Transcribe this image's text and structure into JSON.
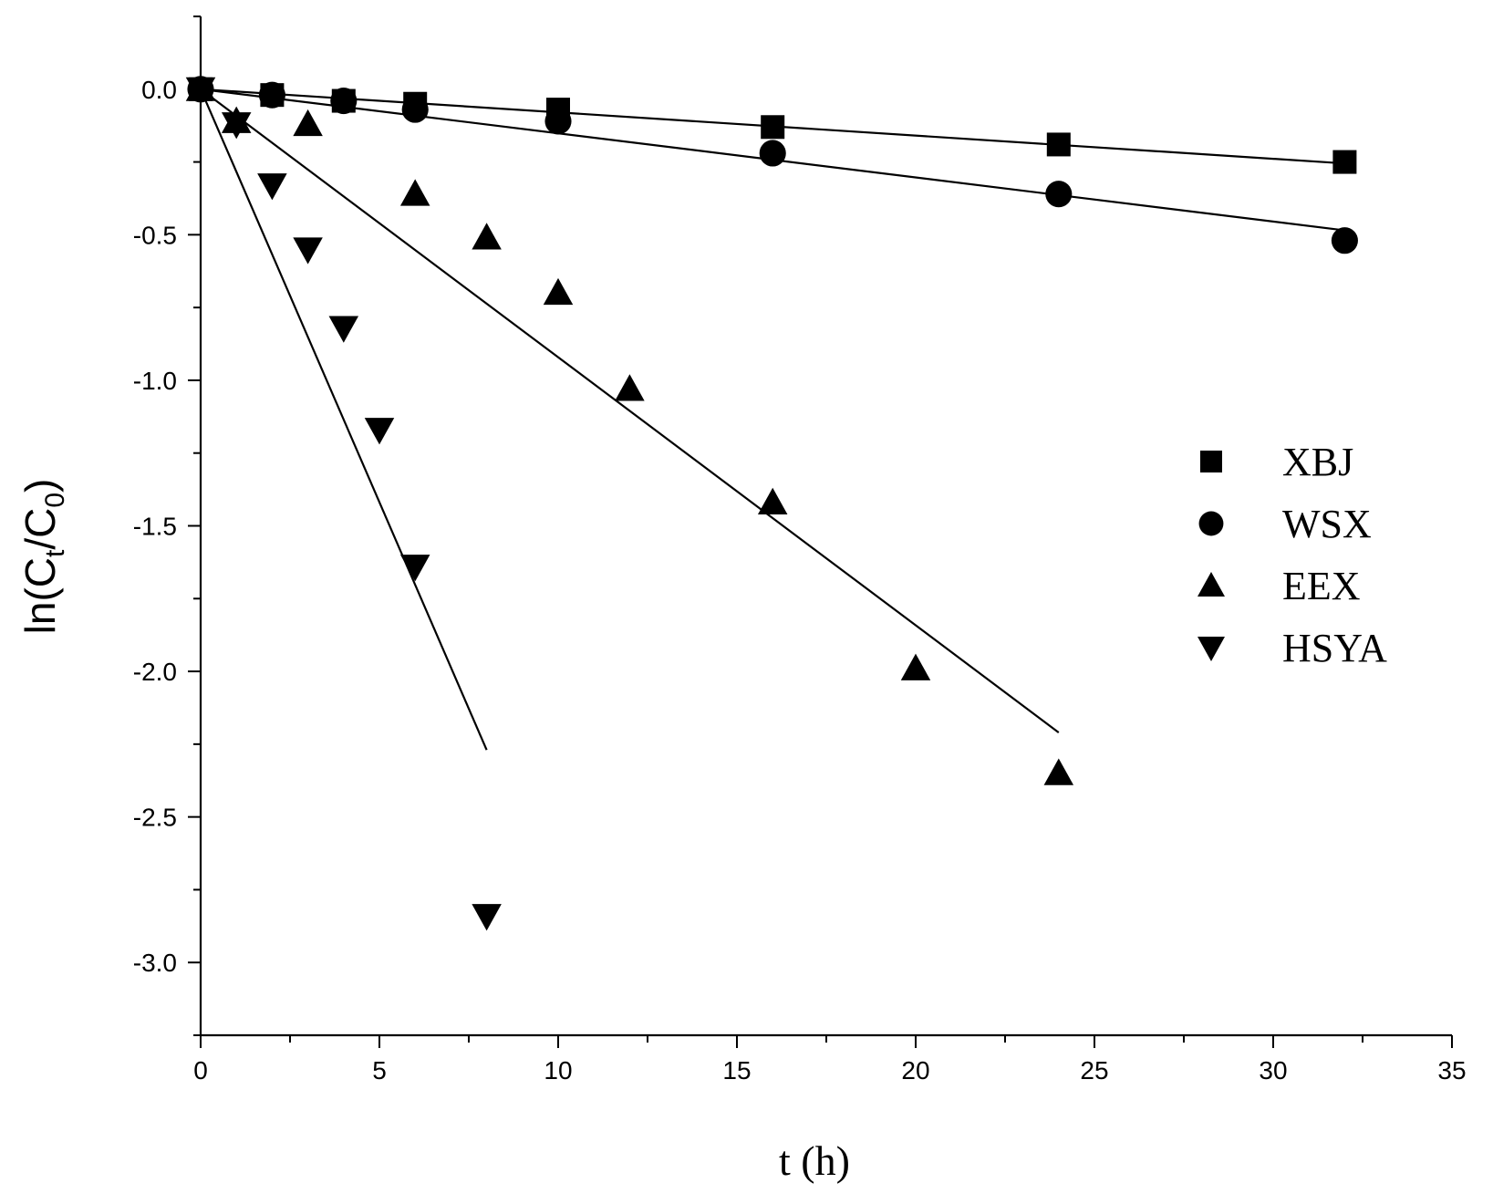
{
  "chart_data": {
    "type": "scatter",
    "title": "",
    "xlabel": "t (h)",
    "ylabel": {
      "prefix": "ln(C",
      "sub1": "t",
      "mid": "/C",
      "sub2": "0",
      "suffix": ")"
    },
    "xlim": [
      0,
      35
    ],
    "ylim": [
      -3.25,
      0.25
    ],
    "xticks": [
      0,
      5,
      10,
      15,
      20,
      25,
      30,
      35
    ],
    "xtick_labels": [
      "0",
      "5",
      "10",
      "15",
      "20",
      "25",
      "30",
      "35"
    ],
    "yticks": [
      0.0,
      -0.5,
      -1.0,
      -1.5,
      -2.0,
      -2.5,
      -3.0
    ],
    "ytick_labels": [
      "0.0",
      "-0.5",
      "-1.0",
      "-1.5",
      "-2.0",
      "-2.5",
      "-3.0"
    ],
    "grid": false,
    "legend_position": "right",
    "series": [
      {
        "name": "XBJ",
        "marker": "square",
        "x": [
          0,
          2,
          4,
          6,
          10,
          16,
          24,
          32
        ],
        "y": [
          0,
          -0.02,
          -0.04,
          -0.05,
          -0.07,
          -0.13,
          -0.19,
          -0.25
        ],
        "fit_x": [
          0,
          32
        ],
        "fit_y": [
          0,
          -0.255
        ]
      },
      {
        "name": "WSX",
        "marker": "circle",
        "x": [
          0,
          2,
          4,
          6,
          10,
          16,
          24,
          32
        ],
        "y": [
          0,
          -0.02,
          -0.04,
          -0.07,
          -0.11,
          -0.22,
          -0.36,
          -0.52
        ],
        "fit_x": [
          0,
          32
        ],
        "fit_y": [
          0,
          -0.485
        ]
      },
      {
        "name": "EEX",
        "marker": "triangle-up",
        "x": [
          0,
          1,
          3,
          6,
          8,
          10,
          12,
          16,
          20,
          24
        ],
        "y": [
          0,
          -0.11,
          -0.12,
          -0.36,
          -0.51,
          -0.7,
          -1.03,
          -1.42,
          -1.99,
          -2.35
        ],
        "fit_x": [
          0,
          24
        ],
        "fit_y": [
          0,
          -2.21
        ]
      },
      {
        "name": "HSYA",
        "marker": "triangle-down",
        "x": [
          0,
          1,
          2,
          3,
          4,
          5,
          6,
          8
        ],
        "y": [
          0,
          -0.12,
          -0.33,
          -0.55,
          -0.82,
          -1.17,
          -1.64,
          -2.84
        ],
        "fit_x": [
          0,
          8
        ],
        "fit_y": [
          0,
          -2.27
        ]
      }
    ]
  }
}
